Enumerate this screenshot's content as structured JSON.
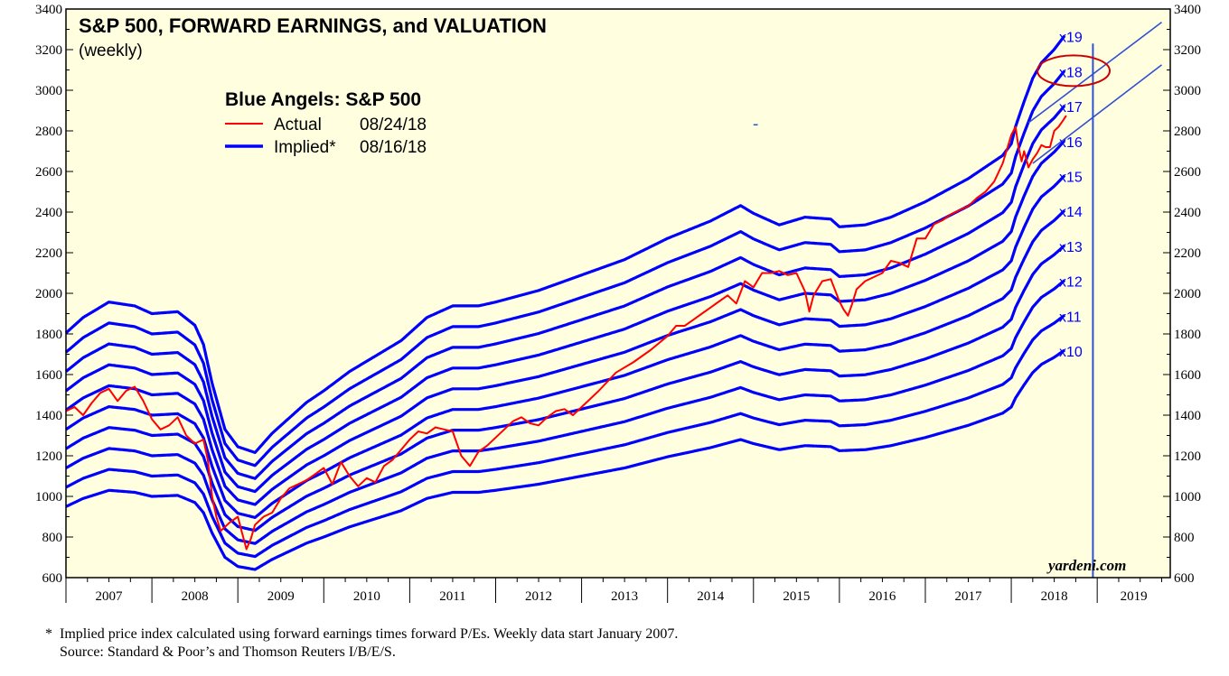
{
  "chart_data": {
    "type": "line",
    "title": "S&P 500, FORWARD EARNINGS, and VALUATION",
    "subtitle": "(weekly)",
    "legend": {
      "title": "Blue Angels: S&P 500",
      "placement": "top-left",
      "entries": [
        {
          "name": "Actual",
          "date": "08/24/18",
          "color": "#ff0000"
        },
        {
          "name": "Implied*",
          "date": "08/16/18",
          "color": "#0000ff"
        }
      ]
    },
    "x_axis": {
      "labels": [
        "2007",
        "2008",
        "2009",
        "2010",
        "2011",
        "2012",
        "2013",
        "2014",
        "2015",
        "2016",
        "2017",
        "2018",
        "2019"
      ],
      "range": [
        2007.0,
        2019.85
      ]
    },
    "y_axis": {
      "ticks": [
        600,
        800,
        1000,
        1200,
        1400,
        1600,
        1800,
        2000,
        2200,
        2400,
        2600,
        2800,
        3000,
        3200,
        3400
      ],
      "range": [
        600,
        3400
      ],
      "both_sides": true
    },
    "grid": false,
    "colors": {
      "background": "#ffffe0",
      "actual": "#ff0000",
      "implied": "#0000ff",
      "annotation": "#cc0000"
    },
    "forward_earnings": {
      "x": [
        2007.0,
        2007.2,
        2007.5,
        2007.8,
        2008.0,
        2008.3,
        2008.5,
        2008.6,
        2008.7,
        2008.85,
        2009.0,
        2009.2,
        2009.4,
        2009.6,
        2009.8,
        2010.0,
        2010.3,
        2010.6,
        2010.9,
        2011.2,
        2011.5,
        2011.8,
        2012.0,
        2012.5,
        2013.0,
        2013.5,
        2014.0,
        2014.5,
        2014.85,
        2015.0,
        2015.3,
        2015.6,
        2015.9,
        2016.0,
        2016.3,
        2016.6,
        2017.0,
        2017.5,
        2017.9,
        2018.0,
        2018.05,
        2018.15,
        2018.25,
        2018.35,
        2018.5,
        2018.62
      ],
      "values": [
        95.0,
        99.0,
        103.0,
        102.0,
        100.0,
        100.5,
        97.0,
        92.0,
        82.0,
        70.0,
        65.5,
        64.0,
        69.0,
        73.0,
        77.0,
        80.0,
        85.0,
        89.0,
        93.0,
        99.0,
        102.0,
        102.0,
        103.0,
        106.0,
        110.0,
        114.0,
        119.5,
        124.0,
        128.0,
        126.0,
        123.0,
        125.0,
        124.5,
        122.5,
        123.0,
        125.0,
        129.0,
        135.0,
        141.0,
        144.0,
        148.5,
        155.0,
        161.0,
        165.0,
        168.5,
        172.0
      ]
    },
    "series": [
      {
        "name": "Implied*",
        "multiples": [
          "x10",
          "x11",
          "x12",
          "x13",
          "x14",
          "x15",
          "x16",
          "x17",
          "x18",
          "x19"
        ]
      },
      {
        "name": "Actual",
        "x": [
          2007.0,
          2007.1,
          2007.2,
          2007.3,
          2007.4,
          2007.5,
          2007.6,
          2007.7,
          2007.8,
          2007.9,
          2008.0,
          2008.1,
          2008.2,
          2008.3,
          2008.4,
          2008.5,
          2008.6,
          2008.65,
          2008.7,
          2008.75,
          2008.8,
          2008.9,
          2009.0,
          2009.05,
          2009.1,
          2009.15,
          2009.2,
          2009.3,
          2009.4,
          2009.5,
          2009.6,
          2009.7,
          2009.8,
          2009.9,
          2010.0,
          2010.1,
          2010.2,
          2010.3,
          2010.4,
          2010.5,
          2010.6,
          2010.7,
          2010.8,
          2010.9,
          2011.0,
          2011.1,
          2011.2,
          2011.3,
          2011.4,
          2011.5,
          2011.6,
          2011.7,
          2011.8,
          2011.9,
          2012.0,
          2012.1,
          2012.2,
          2012.3,
          2012.4,
          2012.5,
          2012.6,
          2012.7,
          2012.8,
          2012.9,
          2013.0,
          2013.2,
          2013.4,
          2013.6,
          2013.8,
          2014.0,
          2014.1,
          2014.2,
          2014.3,
          2014.4,
          2014.5,
          2014.6,
          2014.7,
          2014.8,
          2014.9,
          2015.0,
          2015.1,
          2015.2,
          2015.3,
          2015.4,
          2015.5,
          2015.6,
          2015.65,
          2015.7,
          2015.8,
          2015.9,
          2016.0,
          2016.05,
          2016.1,
          2016.15,
          2016.2,
          2016.3,
          2016.4,
          2016.5,
          2016.6,
          2016.7,
          2016.8,
          2016.9,
          2017.0,
          2017.1,
          2017.2,
          2017.3,
          2017.4,
          2017.5,
          2017.6,
          2017.7,
          2017.8,
          2017.9,
          2018.0,
          2018.05,
          2018.08,
          2018.12,
          2018.15,
          2018.2,
          2018.25,
          2018.3,
          2018.35,
          2018.4,
          2018.45,
          2018.5,
          2018.55,
          2018.6,
          2018.64
        ],
        "values": [
          1420,
          1440,
          1400,
          1460,
          1510,
          1530,
          1470,
          1520,
          1540,
          1470,
          1380,
          1330,
          1350,
          1390,
          1300,
          1260,
          1280,
          1180,
          1000,
          900,
          830,
          870,
          900,
          820,
          740,
          790,
          860,
          900,
          920,
          990,
          1040,
          1060,
          1080,
          1110,
          1140,
          1060,
          1170,
          1100,
          1050,
          1090,
          1070,
          1150,
          1180,
          1230,
          1280,
          1320,
          1310,
          1340,
          1330,
          1320,
          1200,
          1150,
          1220,
          1250,
          1290,
          1330,
          1370,
          1390,
          1360,
          1350,
          1390,
          1420,
          1430,
          1400,
          1440,
          1520,
          1610,
          1660,
          1720,
          1790,
          1840,
          1840,
          1870,
          1900,
          1930,
          1960,
          1990,
          1950,
          2060,
          2030,
          2100,
          2100,
          2110,
          2090,
          2100,
          2010,
          1910,
          1990,
          2060,
          2070,
          1960,
          1920,
          1890,
          1950,
          2020,
          2060,
          2080,
          2100,
          2160,
          2150,
          2130,
          2270,
          2270,
          2340,
          2360,
          2390,
          2410,
          2430,
          2470,
          2500,
          2550,
          2640,
          2780,
          2820,
          2730,
          2650,
          2700,
          2620,
          2660,
          2690,
          2730,
          2720,
          2720,
          2800,
          2820,
          2850,
          2875
        ]
      }
    ],
    "multiple_labels": [
      "x19",
      "x18",
      "x17",
      "x16",
      "x15",
      "x14",
      "x13",
      "x12",
      "x11",
      "x10"
    ],
    "watermark": "yardeni.com",
    "annotation": "red ellipse circling the x18 label; two diagonal blue trend lines on the upper right"
  },
  "footnotes": [
    "*  Implied price index calculated using forward earnings times forward P/Es. Weekly data start January 2007.",
    "    Source: Standard & Poor’s and Thomson Reuters I/B/E/S."
  ]
}
